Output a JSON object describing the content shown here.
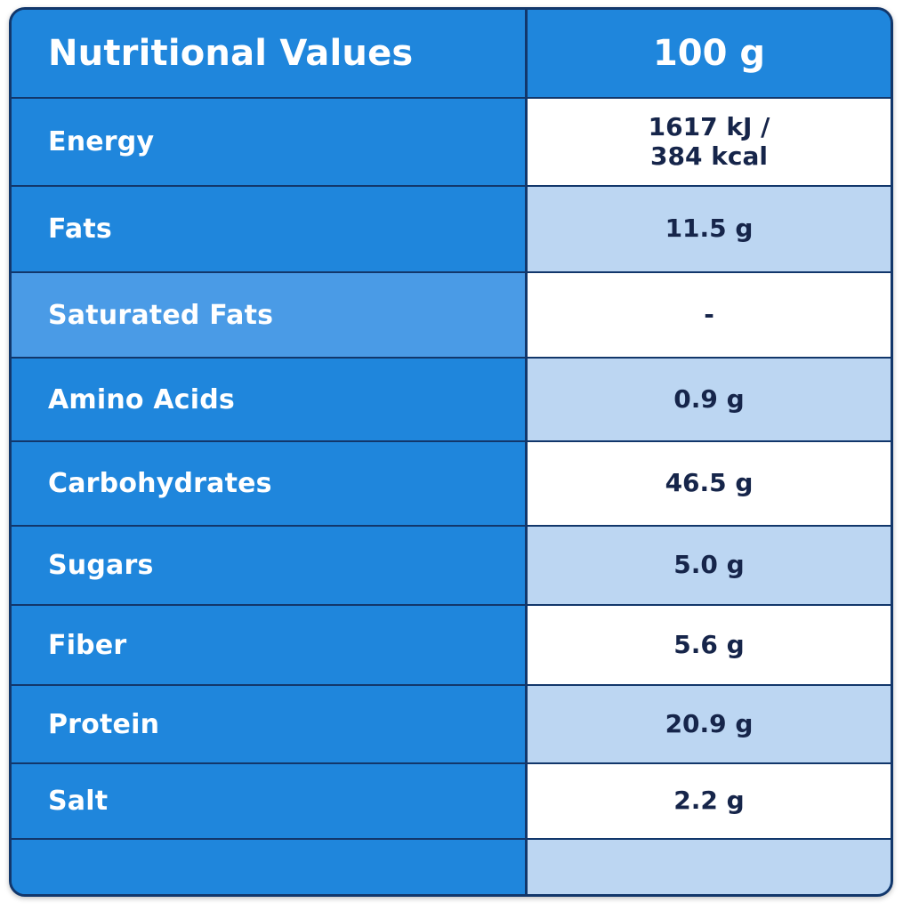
{
  "header": {
    "label": "Nutritional Values",
    "value": "100 g"
  },
  "rows": [
    {
      "label": "Energy",
      "value": "1617 kJ /\n384 kcal"
    },
    {
      "label": "Fats",
      "value": "11.5 g"
    },
    {
      "label": "Saturated Fats",
      "value": "-"
    },
    {
      "label": "Amino Acids",
      "value": "0.9 g"
    },
    {
      "label": "Carbohydrates",
      "value": "46.5 g"
    },
    {
      "label": "Sugars",
      "value": "5.0 g"
    },
    {
      "label": "Fiber",
      "value": "5.6 g"
    },
    {
      "label": "Protein",
      "value": "20.9 g"
    },
    {
      "label": "Salt",
      "value": "2.2 g"
    },
    {
      "label": "",
      "value": ""
    }
  ],
  "colors": {
    "label_background": "#1f86dc",
    "highlight_label_background": "#4a9be6",
    "value_background_light": "#ffffff",
    "value_background_tint": "#bcd6f2",
    "border": "#12376b",
    "value_text": "#16254a"
  }
}
